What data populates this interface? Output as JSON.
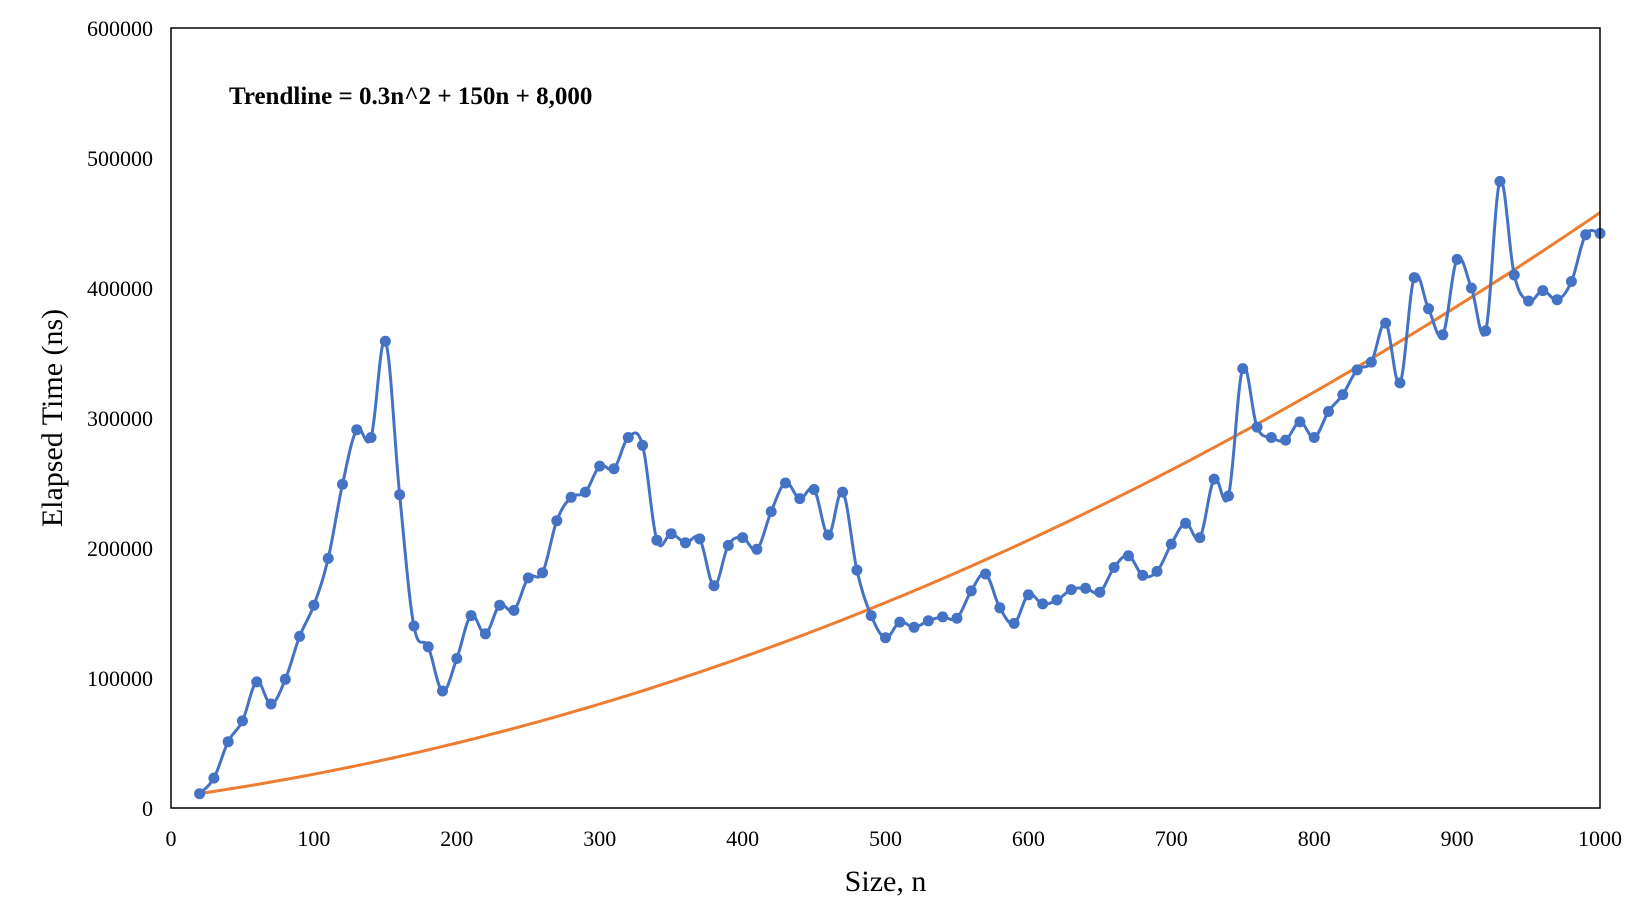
{
  "chart_data": {
    "type": "line",
    "title": "",
    "xlabel": "Size, n",
    "ylabel": "Elapsed Time (ns)",
    "xlim": [
      0,
      1000
    ],
    "ylim": [
      0,
      600000
    ],
    "x_ticks": [
      0,
      100,
      200,
      300,
      400,
      500,
      600,
      700,
      800,
      900,
      1000
    ],
    "y_ticks": [
      0,
      100000,
      200000,
      300000,
      400000,
      500000,
      600000
    ],
    "x_tick_labels": [
      "0",
      "100",
      "200",
      "300",
      "400",
      "500",
      "600",
      "700",
      "800",
      "900",
      "1000"
    ],
    "y_tick_labels": [
      "0",
      "100000",
      "200000",
      "300000",
      "400000",
      "500000",
      "600000"
    ],
    "grid": false,
    "legend": "none",
    "annotation": "Trendline = 0.3n^2 + 150n + 8,000",
    "series": [
      {
        "kind": "measured",
        "color": "#4472C4",
        "markers": true,
        "smooth": true,
        "x": [
          20,
          30,
          40,
          50,
          60,
          70,
          80,
          90,
          100,
          110,
          120,
          130,
          140,
          150,
          160,
          170,
          180,
          190,
          200,
          210,
          220,
          230,
          240,
          250,
          260,
          270,
          280,
          290,
          300,
          310,
          320,
          330,
          340,
          350,
          360,
          370,
          380,
          390,
          400,
          410,
          420,
          430,
          440,
          450,
          460,
          470,
          480,
          490,
          500,
          510,
          520,
          530,
          540,
          550,
          560,
          570,
          580,
          590,
          600,
          610,
          620,
          630,
          640,
          650,
          660,
          670,
          680,
          690,
          700,
          710,
          720,
          730,
          740,
          750,
          760,
          770,
          780,
          790,
          800,
          810,
          820,
          830,
          840,
          850,
          860,
          870,
          880,
          890,
          900,
          910,
          920,
          930,
          940,
          950,
          960,
          970,
          980,
          990,
          1000
        ],
        "y": [
          11000,
          23000,
          51000,
          67000,
          97000,
          80000,
          99000,
          132000,
          156000,
          192000,
          249000,
          291000,
          285000,
          359000,
          241000,
          140000,
          124000,
          90000,
          115000,
          148000,
          134000,
          156000,
          152000,
          177000,
          181000,
          221000,
          239000,
          243000,
          263000,
          261000,
          285000,
          279000,
          206000,
          211000,
          204000,
          207000,
          171000,
          202000,
          208000,
          199000,
          228000,
          250000,
          238000,
          245000,
          210000,
          243000,
          183000,
          148000,
          131000,
          143000,
          139000,
          144000,
          147000,
          146000,
          167000,
          180000,
          154000,
          142000,
          164000,
          157000,
          160000,
          168000,
          169000,
          166000,
          185000,
          194000,
          179000,
          182000,
          203000,
          219000,
          208000,
          253000,
          240000,
          338000,
          293000,
          285000,
          283000,
          297000,
          285000,
          305000,
          318000,
          337000,
          343000,
          373000,
          327000,
          408000,
          384000,
          364000,
          422000,
          400000,
          367000,
          482000,
          410000,
          390000,
          398000,
          391000,
          405000,
          441000,
          442000
        ]
      },
      {
        "kind": "trendline",
        "color": "#ED7D31",
        "markers": false,
        "equation": {
          "a": 0.3,
          "b": 150,
          "c": 8000
        },
        "x_range": [
          20,
          1000
        ]
      }
    ]
  }
}
